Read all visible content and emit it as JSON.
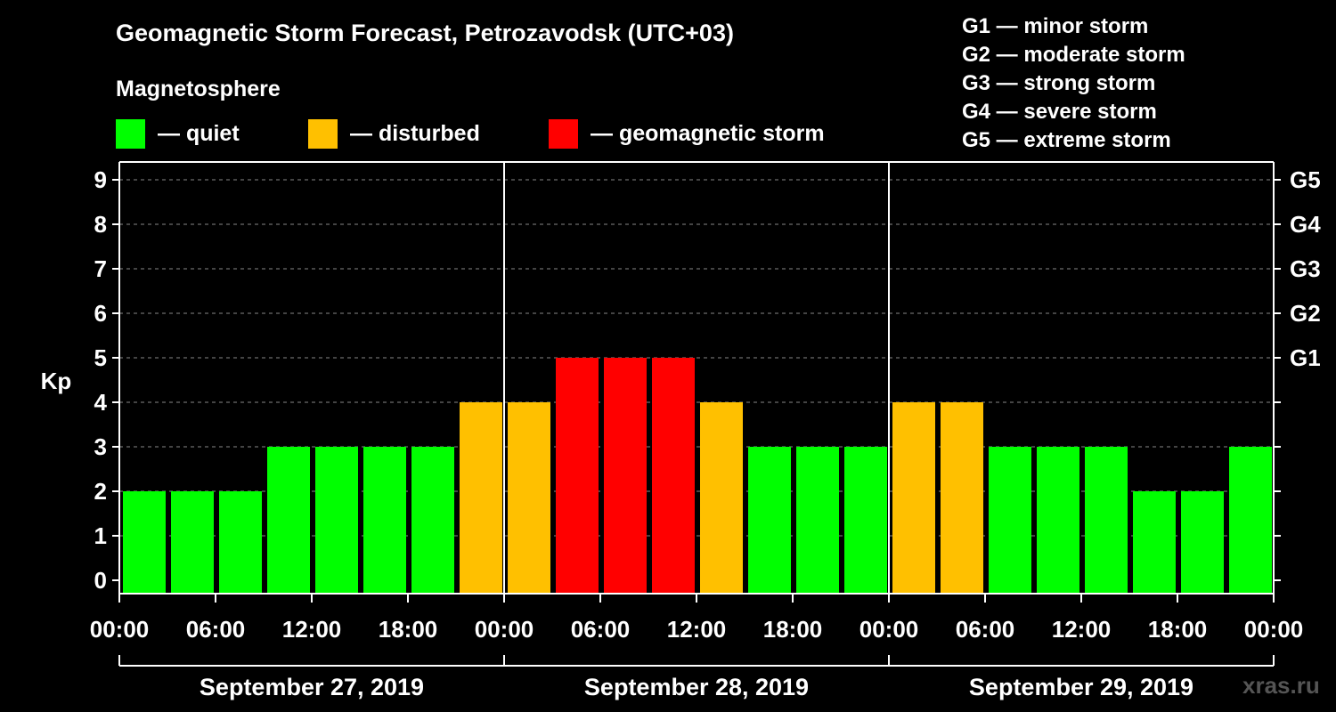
{
  "title": "Geomagnetic Storm Forecast, Petrozavodsk (UTC+03)",
  "subtitle": "Magnetosphere",
  "legend": [
    {
      "label": "— quiet",
      "color": "#00ff00"
    },
    {
      "label": "— disturbed",
      "color": "#ffc000"
    },
    {
      "label": "— geomagnetic storm",
      "color": "#ff0000"
    }
  ],
  "g_legend": [
    "G1 — minor storm",
    "G2 — moderate storm",
    "G3 — strong storm",
    "G4 — severe storm",
    "G5 — extreme storm"
  ],
  "watermark": "xras.ru",
  "chart_data": {
    "type": "bar",
    "ylabel": "Kp",
    "ylim": [
      0,
      9
    ],
    "yticks": [
      "0",
      "1",
      "2",
      "3",
      "4",
      "5",
      "6",
      "7",
      "8",
      "9"
    ],
    "right_ticks": [
      {
        "value": 5,
        "label": "G1"
      },
      {
        "value": 6,
        "label": "G2"
      },
      {
        "value": 7,
        "label": "G3"
      },
      {
        "value": 8,
        "label": "G4"
      },
      {
        "value": 9,
        "label": "G5"
      }
    ],
    "xtick_labels": [
      "00:00",
      "06:00",
      "12:00",
      "18:00",
      "00:00",
      "06:00",
      "12:00",
      "18:00",
      "00:00",
      "06:00",
      "12:00",
      "18:00",
      "00:00"
    ],
    "days": [
      "September 27, 2019",
      "September 28, 2019",
      "September 29, 2019"
    ],
    "grid": true,
    "values": [
      2,
      2,
      2,
      3,
      3,
      3,
      3,
      4,
      4,
      5,
      5,
      5,
      4,
      3,
      3,
      3,
      4,
      4,
      3,
      3,
      3,
      2,
      2,
      3
    ],
    "level_colors": {
      "quiet": "#00ff00",
      "disturbed": "#ffc000",
      "storm": "#ff0000"
    }
  }
}
